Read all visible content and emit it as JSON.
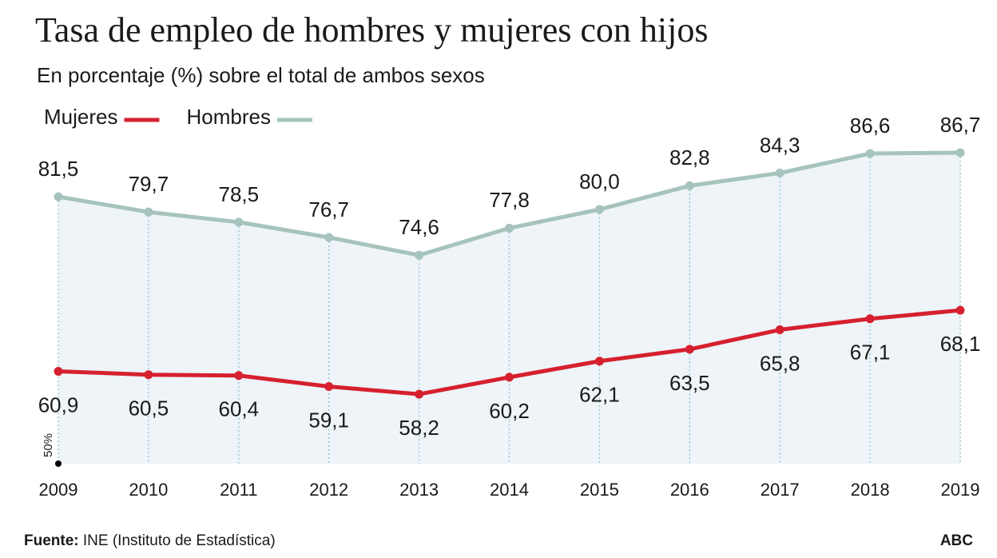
{
  "chart_data": {
    "type": "line",
    "title": "Tasa de empleo de hombres y mujeres con hijos",
    "subtitle": "En porcentaje (%) sobre el total de ambos sexos",
    "categories": [
      "2009",
      "2010",
      "2011",
      "2012",
      "2013",
      "2014",
      "2015",
      "2016",
      "2017",
      "2018",
      "2019"
    ],
    "series": [
      {
        "name": "Mujeres",
        "color": "#d6202f",
        "values": [
          60.9,
          60.5,
          60.4,
          59.1,
          58.2,
          60.2,
          62.1,
          63.5,
          65.8,
          67.1,
          68.1
        ],
        "value_labels": [
          "60,9",
          "60,5",
          "60,4",
          "59,1",
          "58,2",
          "60,2",
          "62,1",
          "63,5",
          "65,8",
          "67,1",
          "68,1"
        ]
      },
      {
        "name": "Hombres",
        "color": "#a6c3bd",
        "values": [
          81.5,
          79.7,
          78.5,
          76.7,
          74.6,
          77.8,
          80.0,
          82.8,
          84.3,
          86.6,
          86.7
        ],
        "value_labels": [
          "81,5",
          "79,7",
          "78,5",
          "76,7",
          "74,6",
          "77,8",
          "80,0",
          "82,8",
          "84,3",
          "86,6",
          "86,7"
        ]
      }
    ],
    "ylim": [
      50,
      90
    ],
    "yticks": [
      {
        "value": 50,
        "label": "50%"
      }
    ],
    "area_color": "#eef4f8",
    "source_label": "Fuente:",
    "source": "INE (Instituto de Estadística)",
    "credit": "ABC"
  }
}
